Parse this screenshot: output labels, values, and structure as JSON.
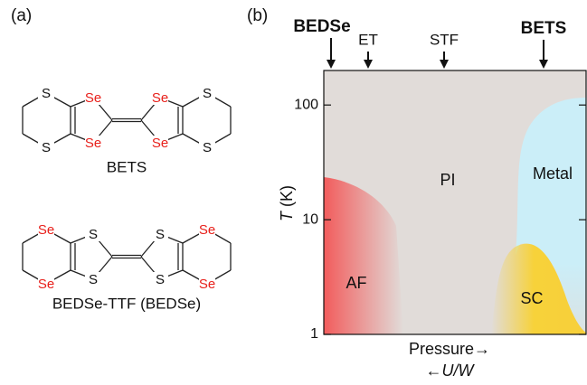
{
  "panel_a": {
    "label": "(a)",
    "molecules": [
      {
        "name": "BETS",
        "atoms": [
          "S",
          "S",
          "Se",
          "Se",
          "Se",
          "Se",
          "S",
          "S"
        ]
      },
      {
        "name": "BEDSe-TTF (BEDSe)",
        "atoms": [
          "Se",
          "Se",
          "S",
          "S",
          "S",
          "S",
          "Se",
          "Se"
        ]
      }
    ]
  },
  "panel_b": {
    "label": "(b)",
    "arrows": [
      {
        "label": "BEDSe",
        "bold": true
      },
      {
        "label": "ET",
        "bold": false
      },
      {
        "label": "STF",
        "bold": false
      },
      {
        "label": "BETS",
        "bold": true
      }
    ],
    "ylabel_var": "T",
    "ylabel_unit": "(K)",
    "xlabel": "Pressure→",
    "xlabel2": "←U/W",
    "ylim": [
      1,
      200
    ],
    "yticks": [
      1,
      10,
      100
    ],
    "log_y": true,
    "regions": [
      "PI",
      "Metal",
      "AF",
      "SC"
    ]
  }
}
